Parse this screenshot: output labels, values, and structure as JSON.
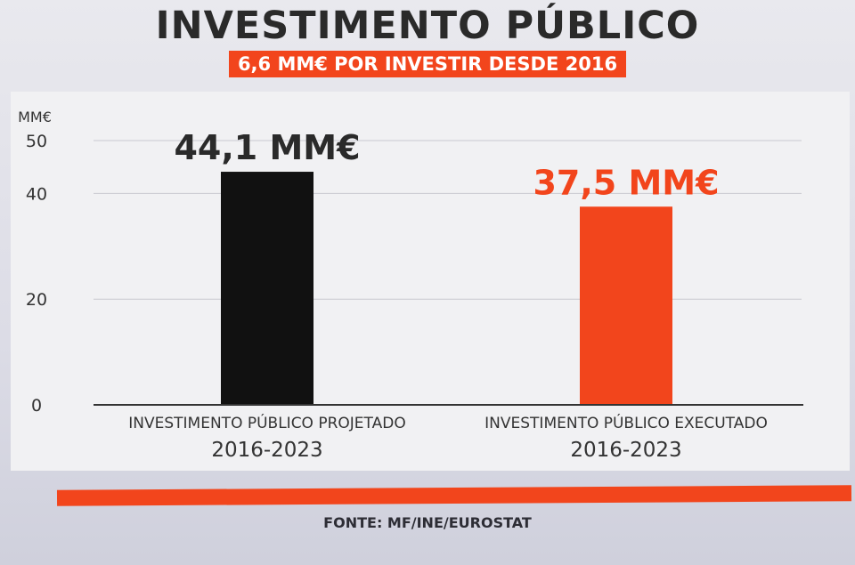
{
  "title": "INVESTIMENTO PÚBLICO",
  "subtitle": "6,6 MM€ POR INVESTIR DESDE 2016",
  "source": "FONTE: MF/INE/EUROSTAT",
  "colors": {
    "accent": "#f2451c",
    "dark": "#111111",
    "text": "#2a2a2a"
  },
  "chart_data": {
    "type": "bar",
    "ylabel": "MM€",
    "ylim": [
      0,
      50
    ],
    "yticks": [
      "0",
      "20",
      "40",
      "50"
    ],
    "grid": true,
    "categories": [
      {
        "line1": "INVESTIMENTO PÚBLICO PROJETADO",
        "line2": "2016-2023"
      },
      {
        "line1": "INVESTIMENTO PÚBLICO EXECUTADO",
        "line2": "2016-2023"
      }
    ],
    "values": [
      44.1,
      37.5
    ],
    "data_labels": [
      "44,1 MM€",
      "37,5 MM€"
    ],
    "bar_colors": [
      "#111111",
      "#f2451c"
    ]
  }
}
